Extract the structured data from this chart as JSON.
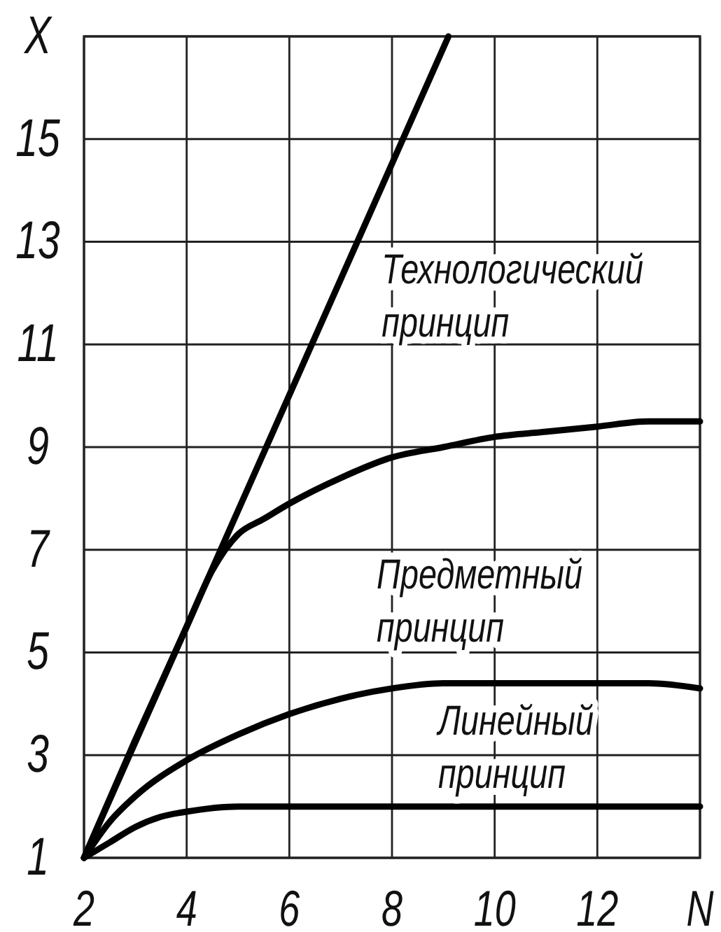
{
  "chart_data": {
    "type": "line",
    "xlim": [
      2,
      14
    ],
    "xticks": [
      2,
      4,
      6,
      8,
      10,
      12,
      {
        "value": 14,
        "label": "N"
      }
    ],
    "ylim": [
      1,
      17
    ],
    "yticks": [
      1,
      3,
      5,
      7,
      9,
      11,
      13,
      15,
      {
        "value": 17,
        "label": "X"
      }
    ],
    "grid": true,
    "series": [
      {
        "color": "#000000",
        "x": [
          2,
          9.1
        ],
        "values": [
          1,
          17
        ]
      },
      {
        "color": "#000000",
        "x": [
          2,
          3,
          4,
          4.5,
          5,
          5.5,
          6,
          7,
          8,
          9,
          10,
          11,
          12,
          13,
          14
        ],
        "values": [
          1,
          3.3,
          5.5,
          6.6,
          7.3,
          7.6,
          7.9,
          8.4,
          8.8,
          9.0,
          9.2,
          9.3,
          9.4,
          9.5,
          9.5
        ]
      },
      {
        "color": "#000000",
        "x": [
          2,
          2.5,
          3,
          4,
          5,
          6,
          7,
          8,
          9,
          10,
          11,
          12,
          13,
          14
        ],
        "values": [
          1,
          1.7,
          2.2,
          2.9,
          3.4,
          3.8,
          4.1,
          4.3,
          4.4,
          4.4,
          4.4,
          4.4,
          4.4,
          4.3
        ]
      },
      {
        "color": "#000000",
        "x": [
          2,
          2.5,
          3,
          3.5,
          4,
          5,
          6,
          8,
          10,
          12,
          14
        ],
        "values": [
          1,
          1.3,
          1.6,
          1.8,
          1.9,
          2.0,
          2.0,
          2.0,
          2.0,
          2.0,
          2.0
        ]
      }
    ],
    "annotations": [
      "Технологический\nпринцип",
      "Предметный\nпринцип",
      "Линейный\nпринцип"
    ]
  }
}
